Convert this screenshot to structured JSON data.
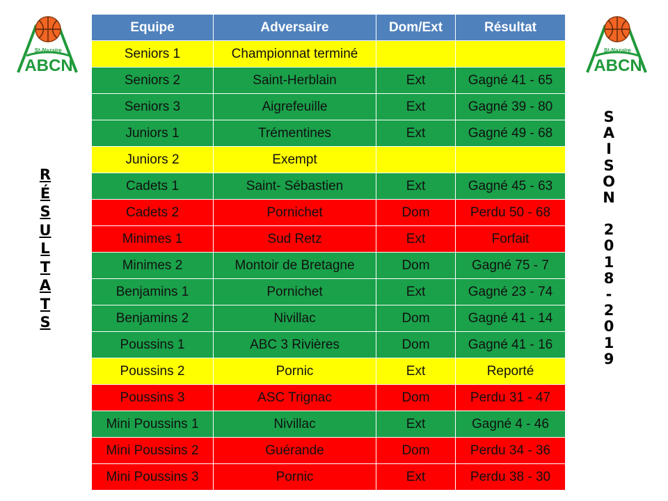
{
  "logo": {
    "subtitle": "St-Nazaire",
    "letters": "ABCN",
    "ball_color": "#f26522",
    "green": "#1f9a3a"
  },
  "left_vertical_text": [
    "R",
    "É",
    "S",
    "U",
    "L",
    "T",
    "A",
    "T",
    "S"
  ],
  "right_vertical_text": [
    "S",
    "A",
    "I",
    "S",
    "O",
    "N",
    "",
    "2",
    "0",
    "1",
    "8",
    "-",
    "2",
    "0",
    "1",
    "9"
  ],
  "table": {
    "headers": [
      "Equipe",
      "Adversaire",
      "Dom/Ext",
      "Résultat"
    ],
    "rows": [
      {
        "equipe": "Seniors 1",
        "adversaire": "Championnat terminé",
        "lieu": "",
        "resultat": "",
        "status": "yellow"
      },
      {
        "equipe": "Seniors 2",
        "adversaire": "Saint-Herblain",
        "lieu": "Ext",
        "resultat": "Gagné 41 - 65",
        "status": "green"
      },
      {
        "equipe": "Seniors 3",
        "adversaire": "Aigrefeuille",
        "lieu": "Ext",
        "resultat": "Gagné 39 - 80",
        "status": "green"
      },
      {
        "equipe": "Juniors 1",
        "adversaire": "Trémentines",
        "lieu": "Ext",
        "resultat": "Gagné 49 - 68",
        "status": "green"
      },
      {
        "equipe": "Juniors 2",
        "adversaire": "Exempt",
        "lieu": "",
        "resultat": "",
        "status": "yellow"
      },
      {
        "equipe": "Cadets 1",
        "adversaire": "Saint- Sébastien",
        "lieu": "Ext",
        "resultat": "Gagné 45 - 63",
        "status": "green"
      },
      {
        "equipe": "Cadets 2",
        "adversaire": "Pornichet",
        "lieu": "Dom",
        "resultat": "Perdu 50 - 68",
        "status": "red"
      },
      {
        "equipe": "Minimes 1",
        "adversaire": "Sud Retz",
        "lieu": "Ext",
        "resultat": "Forfait",
        "status": "red"
      },
      {
        "equipe": "Minimes 2",
        "adversaire": "Montoir de Bretagne",
        "lieu": "Dom",
        "resultat": "Gagné 75 - 7",
        "status": "green"
      },
      {
        "equipe": "Benjamins 1",
        "adversaire": "Pornichet",
        "lieu": "Ext",
        "resultat": "Gagné 23 - 74",
        "status": "green"
      },
      {
        "equipe": "Benjamins 2",
        "adversaire": "Nivillac",
        "lieu": "Dom",
        "resultat": "Gagné 41 - 14",
        "status": "green"
      },
      {
        "equipe": "Poussins 1",
        "adversaire": "ABC 3 Rivières",
        "lieu": "Dom",
        "resultat": "Gagné 41 - 16",
        "status": "green"
      },
      {
        "equipe": "Poussins 2",
        "adversaire": "Pornic",
        "lieu": "Ext",
        "resultat": "Reporté",
        "status": "yellow"
      },
      {
        "equipe": "Poussins 3",
        "adversaire": "ASC Trignac",
        "lieu": "Dom",
        "resultat": "Perdu 31 - 47",
        "status": "red"
      },
      {
        "equipe": "Mini Poussins 1",
        "adversaire": "Nivillac",
        "lieu": "Ext",
        "resultat": "Gagné 4 - 46",
        "status": "green"
      },
      {
        "equipe": "Mini Poussins 2",
        "adversaire": "Guérande",
        "lieu": "Dom",
        "resultat": "Perdu 34 - 36",
        "status": "red"
      },
      {
        "equipe": "Mini Poussins 3",
        "adversaire": "Pornic",
        "lieu": "Ext",
        "resultat": "Perdu 38 - 30",
        "status": "red"
      }
    ]
  }
}
